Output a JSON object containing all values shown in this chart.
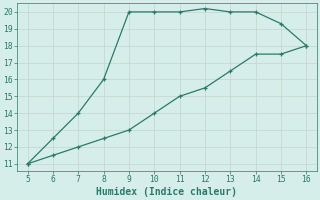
{
  "upper_x": [
    5,
    6,
    7,
    8,
    9,
    10,
    11,
    12,
    13,
    14,
    15,
    16
  ],
  "upper_y": [
    11,
    12.5,
    14,
    16,
    20,
    20,
    20,
    20.2,
    20,
    20,
    19.3,
    18
  ],
  "lower_x": [
    5,
    6,
    7,
    8,
    9,
    10,
    11,
    12,
    13,
    14,
    15,
    16
  ],
  "lower_y": [
    11,
    11.5,
    12,
    12.5,
    13,
    14,
    15,
    15.5,
    16.5,
    17.5,
    17.5,
    18
  ],
  "line_color": "#2a7a6a",
  "bg_color": "#d6eeea",
  "grid_color": "#c8d8d0",
  "xlabel": "Humidex (Indice chaleur)",
  "xlim_min": 4.6,
  "xlim_max": 16.4,
  "ylim_min": 10.6,
  "ylim_max": 20.5,
  "xticks": [
    5,
    6,
    7,
    8,
    9,
    10,
    11,
    12,
    13,
    14,
    15,
    16
  ],
  "yticks": [
    11,
    12,
    13,
    14,
    15,
    16,
    17,
    18,
    19,
    20
  ],
  "tick_fontsize": 5.8,
  "xlabel_fontsize": 7.0,
  "linewidth": 0.9,
  "markersize": 3.5
}
